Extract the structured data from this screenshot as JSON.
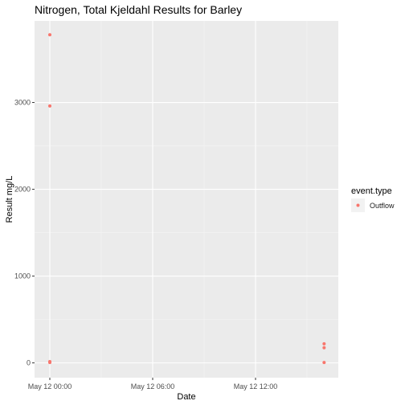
{
  "chart_data": {
    "type": "scatter",
    "title": "Nitrogen, Total Kjeldahl Results for Barley",
    "xlabel": "Date",
    "ylabel": "Result mg/L",
    "x_ticks": [
      "May 12 00:00",
      "May 12 06:00",
      "May 12 12:00"
    ],
    "y_ticks": [
      "0",
      "1000",
      "2000",
      "3000"
    ],
    "ylim": [
      -170,
      3940
    ],
    "legend": {
      "title": "event.type",
      "position": "right",
      "entries": [
        {
          "label": "Outflow",
          "color": "#F8766D"
        }
      ]
    },
    "grid": true,
    "series": [
      {
        "name": "Outflow",
        "color": "#F8766D",
        "points": [
          {
            "x": "May 12 00:00",
            "y": 3780
          },
          {
            "x": "May 12 00:00",
            "y": 2960
          },
          {
            "x": "May 12 00:00",
            "y": 15
          },
          {
            "x": "May 12 00:00",
            "y": 5
          },
          {
            "x": "May 12 16:00",
            "y": 220
          },
          {
            "x": "May 12 16:00",
            "y": 175
          },
          {
            "x": "May 12 16:00",
            "y": 5
          }
        ]
      }
    ]
  }
}
